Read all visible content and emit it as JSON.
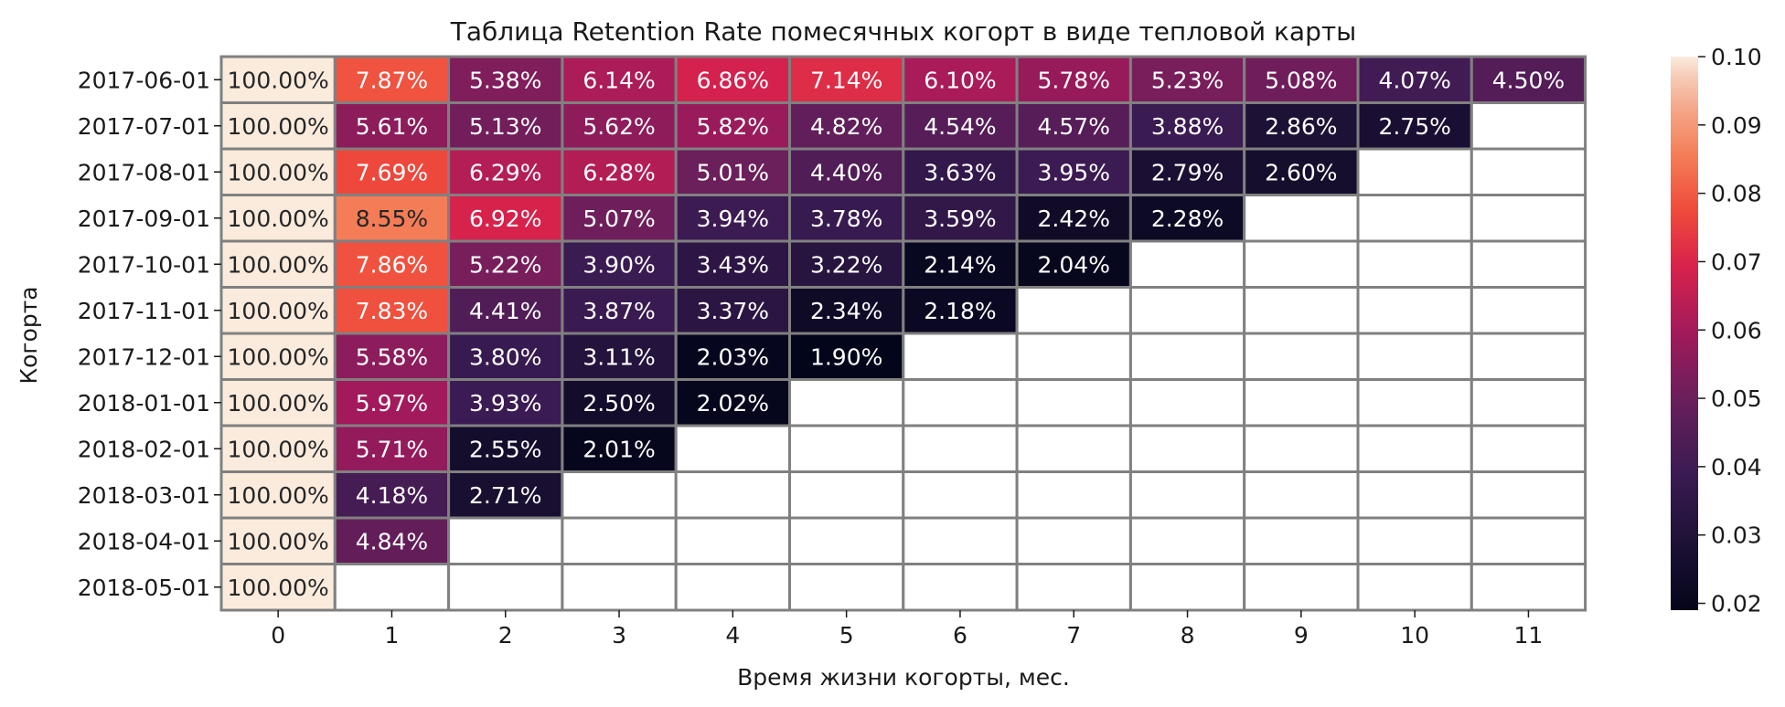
{
  "chart_data": {
    "type": "heatmap",
    "title": "Таблица Retention Rate помесячных когорт в виде тепловой карты",
    "xlabel": "Время жизни когорты, мес.",
    "ylabel": "Когорта",
    "x": [
      "0",
      "1",
      "2",
      "3",
      "4",
      "5",
      "6",
      "7",
      "8",
      "9",
      "10",
      "11"
    ],
    "y": [
      "2017-06-01",
      "2017-07-01",
      "2017-08-01",
      "2017-09-01",
      "2017-10-01",
      "2017-11-01",
      "2017-12-01",
      "2018-01-01",
      "2018-02-01",
      "2018-03-01",
      "2018-04-01",
      "2018-05-01"
    ],
    "values": [
      [
        1.0,
        0.0787,
        0.0538,
        0.0614,
        0.0686,
        0.0714,
        0.061,
        0.0578,
        0.0523,
        0.0508,
        0.0407,
        0.045
      ],
      [
        1.0,
        0.0561,
        0.0513,
        0.0562,
        0.0582,
        0.0482,
        0.0454,
        0.0457,
        0.0388,
        0.0286,
        0.0275,
        null
      ],
      [
        1.0,
        0.0769,
        0.0629,
        0.0628,
        0.0501,
        0.044,
        0.0363,
        0.0395,
        0.0279,
        0.026,
        null,
        null
      ],
      [
        1.0,
        0.0855,
        0.0692,
        0.0507,
        0.0394,
        0.0378,
        0.0359,
        0.0242,
        0.0228,
        null,
        null,
        null
      ],
      [
        1.0,
        0.0786,
        0.0522,
        0.039,
        0.0343,
        0.0322,
        0.0214,
        0.0204,
        null,
        null,
        null,
        null
      ],
      [
        1.0,
        0.0783,
        0.0441,
        0.0387,
        0.0337,
        0.0234,
        0.0218,
        null,
        null,
        null,
        null,
        null
      ],
      [
        1.0,
        0.0558,
        0.038,
        0.0311,
        0.0203,
        0.019,
        null,
        null,
        null,
        null,
        null,
        null
      ],
      [
        1.0,
        0.0597,
        0.0393,
        0.025,
        0.0202,
        null,
        null,
        null,
        null,
        null,
        null,
        null
      ],
      [
        1.0,
        0.0571,
        0.0255,
        0.0201,
        null,
        null,
        null,
        null,
        null,
        null,
        null,
        null
      ],
      [
        1.0,
        0.0418,
        0.0271,
        null,
        null,
        null,
        null,
        null,
        null,
        null,
        null,
        null
      ],
      [
        1.0,
        0.0484,
        null,
        null,
        null,
        null,
        null,
        null,
        null,
        null,
        null,
        null
      ],
      [
        1.0,
        null,
        null,
        null,
        null,
        null,
        null,
        null,
        null,
        null,
        null,
        null
      ]
    ],
    "labels": [
      [
        "100.00%",
        "7.87%",
        "5.38%",
        "6.14%",
        "6.86%",
        "7.14%",
        "6.10%",
        "5.78%",
        "5.23%",
        "5.08%",
        "4.07%",
        "4.50%"
      ],
      [
        "100.00%",
        "5.61%",
        "5.13%",
        "5.62%",
        "5.82%",
        "4.82%",
        "4.54%",
        "4.57%",
        "3.88%",
        "2.86%",
        "2.75%",
        ""
      ],
      [
        "100.00%",
        "7.69%",
        "6.29%",
        "6.28%",
        "5.01%",
        "4.40%",
        "3.63%",
        "3.95%",
        "2.79%",
        "2.60%",
        "",
        ""
      ],
      [
        "100.00%",
        "8.55%",
        "6.92%",
        "5.07%",
        "3.94%",
        "3.78%",
        "3.59%",
        "2.42%",
        "2.28%",
        "",
        "",
        ""
      ],
      [
        "100.00%",
        "7.86%",
        "5.22%",
        "3.90%",
        "3.43%",
        "3.22%",
        "2.14%",
        "2.04%",
        "",
        "",
        "",
        ""
      ],
      [
        "100.00%",
        "7.83%",
        "4.41%",
        "3.87%",
        "3.37%",
        "2.34%",
        "2.18%",
        "",
        "",
        "",
        "",
        ""
      ],
      [
        "100.00%",
        "5.58%",
        "3.80%",
        "3.11%",
        "2.03%",
        "1.90%",
        "",
        "",
        "",
        "",
        "",
        ""
      ],
      [
        "100.00%",
        "5.97%",
        "3.93%",
        "2.50%",
        "2.02%",
        "",
        "",
        "",
        "",
        "",
        "",
        ""
      ],
      [
        "100.00%",
        "5.71%",
        "2.55%",
        "2.01%",
        "",
        "",
        "",
        "",
        "",
        "",
        "",
        ""
      ],
      [
        "100.00%",
        "4.18%",
        "2.71%",
        "",
        "",
        "",
        "",
        "",
        "",
        "",
        "",
        ""
      ],
      [
        "100.00%",
        "4.84%",
        "",
        "",
        "",
        "",
        "",
        "",
        "",
        "",
        "",
        ""
      ],
      [
        "100.00%",
        "",
        "",
        "",
        "",
        "",
        "",
        "",
        "",
        "",
        "",
        ""
      ]
    ],
    "colorscale": "rocket",
    "vmin": 0.019,
    "vmax": 0.1,
    "colorbar_ticks": [
      "0.02",
      "0.03",
      "0.04",
      "0.05",
      "0.06",
      "0.07",
      "0.08",
      "0.09",
      "0.10"
    ],
    "cell_border_color": "#808080"
  }
}
